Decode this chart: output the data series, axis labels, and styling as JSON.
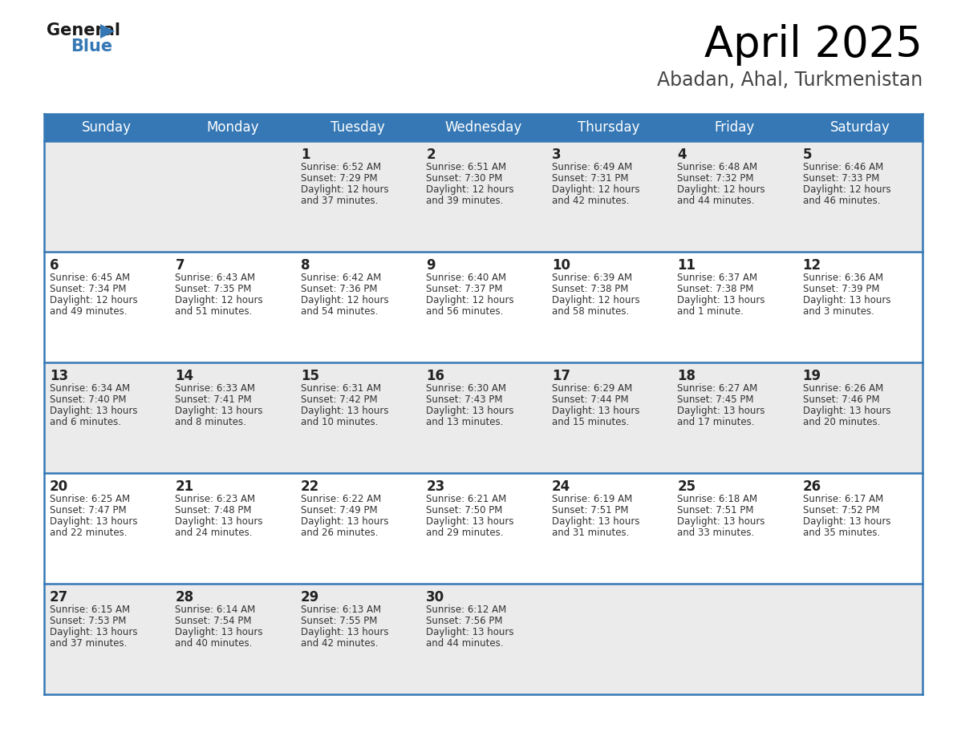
{
  "title": "April 2025",
  "subtitle": "Abadan, Ahal, Turkmenistan",
  "header_bg": "#3578b5",
  "header_text_color": "#ffffff",
  "text_color": "#333333",
  "day_num_color": "#222222",
  "border_color": "#3578b5",
  "row_bg_odd": "#ebebeb",
  "row_bg_even": "#ffffff",
  "logo_text_color": "#1a1a1a",
  "logo_blue_color": "#3578b5",
  "day_headers": [
    "Sunday",
    "Monday",
    "Tuesday",
    "Wednesday",
    "Thursday",
    "Friday",
    "Saturday"
  ],
  "days": [
    {
      "day": 1,
      "col": 2,
      "row": 0,
      "sunrise": "6:52 AM",
      "sunset": "7:29 PM",
      "dl_hours": 12,
      "dl_mins": "37 minutes"
    },
    {
      "day": 2,
      "col": 3,
      "row": 0,
      "sunrise": "6:51 AM",
      "sunset": "7:30 PM",
      "dl_hours": 12,
      "dl_mins": "39 minutes"
    },
    {
      "day": 3,
      "col": 4,
      "row": 0,
      "sunrise": "6:49 AM",
      "sunset": "7:31 PM",
      "dl_hours": 12,
      "dl_mins": "42 minutes"
    },
    {
      "day": 4,
      "col": 5,
      "row": 0,
      "sunrise": "6:48 AM",
      "sunset": "7:32 PM",
      "dl_hours": 12,
      "dl_mins": "44 minutes"
    },
    {
      "day": 5,
      "col": 6,
      "row": 0,
      "sunrise": "6:46 AM",
      "sunset": "7:33 PM",
      "dl_hours": 12,
      "dl_mins": "46 minutes"
    },
    {
      "day": 6,
      "col": 0,
      "row": 1,
      "sunrise": "6:45 AM",
      "sunset": "7:34 PM",
      "dl_hours": 12,
      "dl_mins": "49 minutes"
    },
    {
      "day": 7,
      "col": 1,
      "row": 1,
      "sunrise": "6:43 AM",
      "sunset": "7:35 PM",
      "dl_hours": 12,
      "dl_mins": "51 minutes"
    },
    {
      "day": 8,
      "col": 2,
      "row": 1,
      "sunrise": "6:42 AM",
      "sunset": "7:36 PM",
      "dl_hours": 12,
      "dl_mins": "54 minutes"
    },
    {
      "day": 9,
      "col": 3,
      "row": 1,
      "sunrise": "6:40 AM",
      "sunset": "7:37 PM",
      "dl_hours": 12,
      "dl_mins": "56 minutes"
    },
    {
      "day": 10,
      "col": 4,
      "row": 1,
      "sunrise": "6:39 AM",
      "sunset": "7:38 PM",
      "dl_hours": 12,
      "dl_mins": "58 minutes"
    },
    {
      "day": 11,
      "col": 5,
      "row": 1,
      "sunrise": "6:37 AM",
      "sunset": "7:38 PM",
      "dl_hours": 13,
      "dl_mins": "1 minute"
    },
    {
      "day": 12,
      "col": 6,
      "row": 1,
      "sunrise": "6:36 AM",
      "sunset": "7:39 PM",
      "dl_hours": 13,
      "dl_mins": "3 minutes"
    },
    {
      "day": 13,
      "col": 0,
      "row": 2,
      "sunrise": "6:34 AM",
      "sunset": "7:40 PM",
      "dl_hours": 13,
      "dl_mins": "6 minutes"
    },
    {
      "day": 14,
      "col": 1,
      "row": 2,
      "sunrise": "6:33 AM",
      "sunset": "7:41 PM",
      "dl_hours": 13,
      "dl_mins": "8 minutes"
    },
    {
      "day": 15,
      "col": 2,
      "row": 2,
      "sunrise": "6:31 AM",
      "sunset": "7:42 PM",
      "dl_hours": 13,
      "dl_mins": "10 minutes"
    },
    {
      "day": 16,
      "col": 3,
      "row": 2,
      "sunrise": "6:30 AM",
      "sunset": "7:43 PM",
      "dl_hours": 13,
      "dl_mins": "13 minutes"
    },
    {
      "day": 17,
      "col": 4,
      "row": 2,
      "sunrise": "6:29 AM",
      "sunset": "7:44 PM",
      "dl_hours": 13,
      "dl_mins": "15 minutes"
    },
    {
      "day": 18,
      "col": 5,
      "row": 2,
      "sunrise": "6:27 AM",
      "sunset": "7:45 PM",
      "dl_hours": 13,
      "dl_mins": "17 minutes"
    },
    {
      "day": 19,
      "col": 6,
      "row": 2,
      "sunrise": "6:26 AM",
      "sunset": "7:46 PM",
      "dl_hours": 13,
      "dl_mins": "20 minutes"
    },
    {
      "day": 20,
      "col": 0,
      "row": 3,
      "sunrise": "6:25 AM",
      "sunset": "7:47 PM",
      "dl_hours": 13,
      "dl_mins": "22 minutes"
    },
    {
      "day": 21,
      "col": 1,
      "row": 3,
      "sunrise": "6:23 AM",
      "sunset": "7:48 PM",
      "dl_hours": 13,
      "dl_mins": "24 minutes"
    },
    {
      "day": 22,
      "col": 2,
      "row": 3,
      "sunrise": "6:22 AM",
      "sunset": "7:49 PM",
      "dl_hours": 13,
      "dl_mins": "26 minutes"
    },
    {
      "day": 23,
      "col": 3,
      "row": 3,
      "sunrise": "6:21 AM",
      "sunset": "7:50 PM",
      "dl_hours": 13,
      "dl_mins": "29 minutes"
    },
    {
      "day": 24,
      "col": 4,
      "row": 3,
      "sunrise": "6:19 AM",
      "sunset": "7:51 PM",
      "dl_hours": 13,
      "dl_mins": "31 minutes"
    },
    {
      "day": 25,
      "col": 5,
      "row": 3,
      "sunrise": "6:18 AM",
      "sunset": "7:51 PM",
      "dl_hours": 13,
      "dl_mins": "33 minutes"
    },
    {
      "day": 26,
      "col": 6,
      "row": 3,
      "sunrise": "6:17 AM",
      "sunset": "7:52 PM",
      "dl_hours": 13,
      "dl_mins": "35 minutes"
    },
    {
      "day": 27,
      "col": 0,
      "row": 4,
      "sunrise": "6:15 AM",
      "sunset": "7:53 PM",
      "dl_hours": 13,
      "dl_mins": "37 minutes"
    },
    {
      "day": 28,
      "col": 1,
      "row": 4,
      "sunrise": "6:14 AM",
      "sunset": "7:54 PM",
      "dl_hours": 13,
      "dl_mins": "40 minutes"
    },
    {
      "day": 29,
      "col": 2,
      "row": 4,
      "sunrise": "6:13 AM",
      "sunset": "7:55 PM",
      "dl_hours": 13,
      "dl_mins": "42 minutes"
    },
    {
      "day": 30,
      "col": 3,
      "row": 4,
      "sunrise": "6:12 AM",
      "sunset": "7:56 PM",
      "dl_hours": 13,
      "dl_mins": "44 minutes"
    }
  ]
}
